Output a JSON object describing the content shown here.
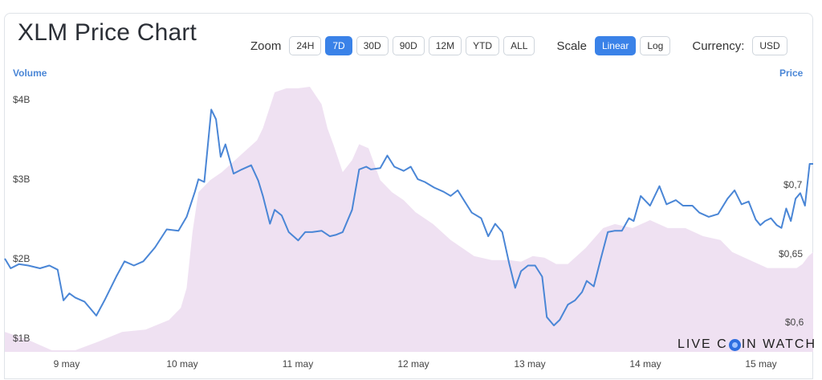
{
  "header": {
    "title": "XLM Price Chart"
  },
  "toolbar": {
    "zoom_label": "Zoom",
    "zoom_options": [
      "24H",
      "7D",
      "30D",
      "90D",
      "12M",
      "YTD",
      "ALL"
    ],
    "zoom_selected": "7D",
    "scale_label": "Scale",
    "scale_options": [
      "Linear",
      "Log"
    ],
    "scale_selected": "Linear",
    "currency_label": "Currency:",
    "currency_value": "USD"
  },
  "brand": {
    "before": "LIVE C",
    "after": "IN WATCH"
  },
  "colors": {
    "price_line": "#4a86d6",
    "volume_fill": "#efe1f2",
    "accent": "#3a82e8"
  },
  "chart_data": {
    "type": "line",
    "left_axis_title": "Volume",
    "right_axis_title": "Price",
    "volume_ticks": [
      "$4B",
      "$3B",
      "$2B",
      "$1B"
    ],
    "price_ticks": [
      "$0,7",
      "$0,65",
      "$0,6"
    ],
    "x_ticks": [
      "9 may",
      "10 may",
      "11 may",
      "12 may",
      "13 may",
      "14 may",
      "15 may"
    ],
    "volume_ylim": [
      0.8,
      4.2
    ],
    "price_ylim": [
      0.578,
      0.773
    ],
    "day_range": [
      8.6,
      15.49
    ],
    "price": [
      [
        8.6,
        0.645
      ],
      [
        8.65,
        0.638
      ],
      [
        8.72,
        0.641
      ],
      [
        8.8,
        0.64
      ],
      [
        8.9,
        0.638
      ],
      [
        8.98,
        0.64
      ],
      [
        9.05,
        0.637
      ],
      [
        9.1,
        0.615
      ],
      [
        9.15,
        0.62
      ],
      [
        9.2,
        0.617
      ],
      [
        9.28,
        0.614
      ],
      [
        9.38,
        0.604
      ],
      [
        9.45,
        0.615
      ],
      [
        9.55,
        0.632
      ],
      [
        9.62,
        0.643
      ],
      [
        9.7,
        0.64
      ],
      [
        9.78,
        0.643
      ],
      [
        9.88,
        0.653
      ],
      [
        9.98,
        0.666
      ],
      [
        10.08,
        0.665
      ],
      [
        10.15,
        0.675
      ],
      [
        10.22,
        0.693
      ],
      [
        10.25,
        0.702
      ],
      [
        10.3,
        0.7
      ],
      [
        10.36,
        0.752
      ],
      [
        10.4,
        0.745
      ],
      [
        10.44,
        0.718
      ],
      [
        10.48,
        0.727
      ],
      [
        10.55,
        0.706
      ],
      [
        10.62,
        0.709
      ],
      [
        10.7,
        0.712
      ],
      [
        10.76,
        0.701
      ],
      [
        10.8,
        0.69
      ],
      [
        10.86,
        0.67
      ],
      [
        10.9,
        0.68
      ],
      [
        10.96,
        0.676
      ],
      [
        11.02,
        0.664
      ],
      [
        11.1,
        0.658
      ],
      [
        11.16,
        0.664
      ],
      [
        11.22,
        0.664
      ],
      [
        11.3,
        0.665
      ],
      [
        11.37,
        0.661
      ],
      [
        11.42,
        0.662
      ],
      [
        11.48,
        0.664
      ],
      [
        11.56,
        0.68
      ],
      [
        11.62,
        0.709
      ],
      [
        11.68,
        0.711
      ],
      [
        11.72,
        0.709
      ],
      [
        11.8,
        0.71
      ],
      [
        11.86,
        0.719
      ],
      [
        11.92,
        0.711
      ],
      [
        12.0,
        0.708
      ],
      [
        12.06,
        0.711
      ],
      [
        12.12,
        0.702
      ],
      [
        12.18,
        0.7
      ],
      [
        12.26,
        0.696
      ],
      [
        12.34,
        0.693
      ],
      [
        12.4,
        0.69
      ],
      [
        12.46,
        0.694
      ],
      [
        12.52,
        0.686
      ],
      [
        12.58,
        0.678
      ],
      [
        12.66,
        0.674
      ],
      [
        12.72,
        0.661
      ],
      [
        12.78,
        0.67
      ],
      [
        12.84,
        0.664
      ],
      [
        12.9,
        0.641
      ],
      [
        12.95,
        0.624
      ],
      [
        13.0,
        0.636
      ],
      [
        13.06,
        0.64
      ],
      [
        13.12,
        0.64
      ],
      [
        13.18,
        0.632
      ],
      [
        13.22,
        0.603
      ],
      [
        13.28,
        0.597
      ],
      [
        13.33,
        0.601
      ],
      [
        13.4,
        0.612
      ],
      [
        13.46,
        0.615
      ],
      [
        13.52,
        0.621
      ],
      [
        13.56,
        0.629
      ],
      [
        13.62,
        0.625
      ],
      [
        13.68,
        0.645
      ],
      [
        13.74,
        0.664
      ],
      [
        13.8,
        0.665
      ],
      [
        13.86,
        0.665
      ],
      [
        13.92,
        0.674
      ],
      [
        13.96,
        0.672
      ],
      [
        14.02,
        0.69
      ],
      [
        14.1,
        0.683
      ],
      [
        14.18,
        0.697
      ],
      [
        14.24,
        0.684
      ],
      [
        14.32,
        0.687
      ],
      [
        14.38,
        0.683
      ],
      [
        14.46,
        0.683
      ],
      [
        14.52,
        0.678
      ],
      [
        14.6,
        0.675
      ],
      [
        14.68,
        0.677
      ],
      [
        14.76,
        0.688
      ],
      [
        14.82,
        0.694
      ],
      [
        14.88,
        0.684
      ],
      [
        14.94,
        0.686
      ],
      [
        15.0,
        0.673
      ],
      [
        15.04,
        0.669
      ],
      [
        15.08,
        0.672
      ],
      [
        15.13,
        0.674
      ],
      [
        15.18,
        0.669
      ],
      [
        15.22,
        0.667
      ],
      [
        15.26,
        0.681
      ],
      [
        15.3,
        0.672
      ],
      [
        15.34,
        0.688
      ],
      [
        15.38,
        0.692
      ],
      [
        15.42,
        0.683
      ],
      [
        15.46,
        0.713
      ],
      [
        15.49,
        0.713
      ]
    ],
    "volume": [
      [
        8.6,
        1.05
      ],
      [
        8.8,
        0.95
      ],
      [
        9.0,
        0.82
      ],
      [
        9.2,
        0.82
      ],
      [
        9.4,
        0.93
      ],
      [
        9.6,
        1.05
      ],
      [
        9.8,
        1.08
      ],
      [
        10.0,
        1.2
      ],
      [
        10.1,
        1.35
      ],
      [
        10.15,
        1.6
      ],
      [
        10.2,
        2.3
      ],
      [
        10.25,
        2.8
      ],
      [
        10.35,
        2.95
      ],
      [
        10.45,
        3.05
      ],
      [
        10.6,
        3.25
      ],
      [
        10.75,
        3.45
      ],
      [
        10.8,
        3.6
      ],
      [
        10.9,
        4.05
      ],
      [
        11.0,
        4.1
      ],
      [
        11.1,
        4.1
      ],
      [
        11.2,
        4.12
      ],
      [
        11.3,
        3.9
      ],
      [
        11.35,
        3.6
      ],
      [
        11.4,
        3.4
      ],
      [
        11.48,
        3.05
      ],
      [
        11.56,
        3.2
      ],
      [
        11.62,
        3.4
      ],
      [
        11.7,
        3.35
      ],
      [
        11.8,
        2.95
      ],
      [
        11.9,
        2.8
      ],
      [
        12.0,
        2.7
      ],
      [
        12.1,
        2.55
      ],
      [
        12.25,
        2.4
      ],
      [
        12.4,
        2.2
      ],
      [
        12.6,
        2.0
      ],
      [
        12.75,
        1.95
      ],
      [
        12.9,
        1.95
      ],
      [
        13.0,
        1.93
      ],
      [
        13.1,
        2.0
      ],
      [
        13.2,
        1.98
      ],
      [
        13.3,
        1.9
      ],
      [
        13.4,
        1.9
      ],
      [
        13.55,
        2.1
      ],
      [
        13.7,
        2.35
      ],
      [
        13.8,
        2.4
      ],
      [
        13.95,
        2.35
      ],
      [
        14.1,
        2.45
      ],
      [
        14.25,
        2.35
      ],
      [
        14.4,
        2.35
      ],
      [
        14.55,
        2.25
      ],
      [
        14.7,
        2.2
      ],
      [
        14.8,
        2.05
      ],
      [
        14.95,
        1.95
      ],
      [
        15.1,
        1.85
      ],
      [
        15.2,
        1.85
      ],
      [
        15.35,
        1.85
      ],
      [
        15.4,
        1.9
      ],
      [
        15.45,
        2.0
      ],
      [
        15.49,
        2.05
      ]
    ]
  }
}
